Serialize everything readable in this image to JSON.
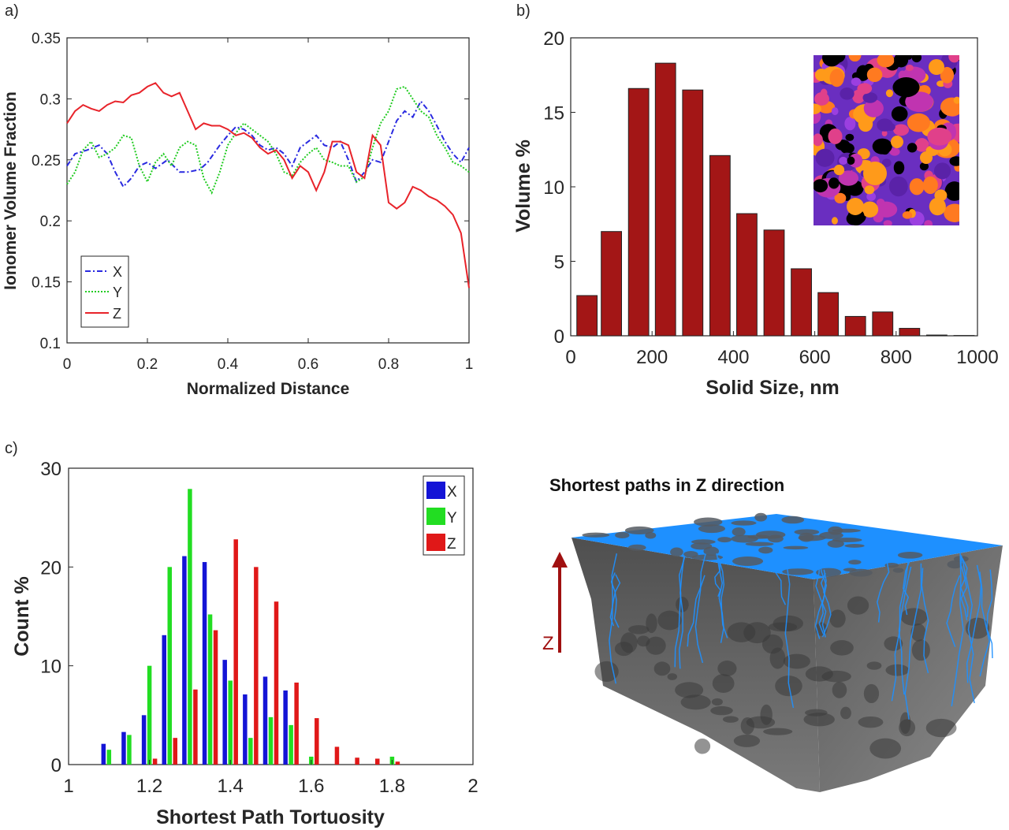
{
  "chart_data": [
    {
      "panel": "a)",
      "type": "line",
      "xlabel": "Normalized Distance",
      "ylabel": "Ionomer Volume Fraction",
      "xlim": [
        0,
        1
      ],
      "ylim": [
        0.1,
        0.35
      ],
      "xticks": [
        0,
        0.2,
        0.4,
        0.6,
        0.8,
        1
      ],
      "xtick_labels": [
        "0",
        "0.2",
        "0.4",
        "0.6",
        "0.8",
        "1"
      ],
      "yticks": [
        0.1,
        0.15,
        0.2,
        0.25,
        0.3,
        0.35
      ],
      "ytick_labels": [
        "0.1",
        "0.15",
        "0.2",
        "0.25",
        "0.3",
        "0.35"
      ],
      "legend_position": "bottom-left",
      "series": [
        {
          "name": "X",
          "color": "#2a2ae0",
          "style": "dashdot",
          "x": [
            0,
            0.02,
            0.05,
            0.08,
            0.1,
            0.12,
            0.14,
            0.16,
            0.18,
            0.2,
            0.22,
            0.25,
            0.28,
            0.3,
            0.33,
            0.35,
            0.38,
            0.4,
            0.42,
            0.44,
            0.46,
            0.48,
            0.5,
            0.52,
            0.54,
            0.56,
            0.58,
            0.6,
            0.62,
            0.64,
            0.66,
            0.68,
            0.7,
            0.72,
            0.74,
            0.76,
            0.78,
            0.8,
            0.82,
            0.84,
            0.86,
            0.88,
            0.9,
            0.92,
            0.94,
            0.96,
            0.98,
            1.0
          ],
          "y": [
            0.245,
            0.255,
            0.258,
            0.262,
            0.255,
            0.24,
            0.228,
            0.235,
            0.245,
            0.248,
            0.243,
            0.25,
            0.24,
            0.24,
            0.242,
            0.248,
            0.262,
            0.27,
            0.277,
            0.275,
            0.27,
            0.262,
            0.258,
            0.26,
            0.255,
            0.245,
            0.26,
            0.265,
            0.27,
            0.262,
            0.26,
            0.265,
            0.25,
            0.232,
            0.24,
            0.25,
            0.248,
            0.265,
            0.282,
            0.29,
            0.285,
            0.298,
            0.29,
            0.278,
            0.265,
            0.255,
            0.248,
            0.26
          ]
        },
        {
          "name": "Y",
          "color": "#22cc22",
          "style": "dotted",
          "x": [
            0,
            0.02,
            0.04,
            0.06,
            0.08,
            0.1,
            0.12,
            0.14,
            0.16,
            0.18,
            0.2,
            0.22,
            0.24,
            0.26,
            0.28,
            0.3,
            0.32,
            0.34,
            0.36,
            0.38,
            0.4,
            0.42,
            0.44,
            0.46,
            0.48,
            0.5,
            0.52,
            0.54,
            0.56,
            0.58,
            0.6,
            0.62,
            0.64,
            0.66,
            0.68,
            0.7,
            0.72,
            0.74,
            0.76,
            0.78,
            0.8,
            0.82,
            0.84,
            0.86,
            0.88,
            0.9,
            0.92,
            0.94,
            0.96,
            0.98,
            1.0
          ],
          "y": [
            0.23,
            0.24,
            0.258,
            0.265,
            0.252,
            0.255,
            0.26,
            0.27,
            0.268,
            0.245,
            0.232,
            0.248,
            0.255,
            0.245,
            0.26,
            0.265,
            0.262,
            0.235,
            0.223,
            0.24,
            0.262,
            0.272,
            0.28,
            0.275,
            0.27,
            0.265,
            0.255,
            0.24,
            0.237,
            0.248,
            0.255,
            0.26,
            0.25,
            0.248,
            0.245,
            0.245,
            0.232,
            0.236,
            0.26,
            0.28,
            0.29,
            0.308,
            0.31,
            0.3,
            0.29,
            0.285,
            0.27,
            0.26,
            0.248,
            0.245,
            0.24
          ]
        },
        {
          "name": "Z",
          "color": "#e8232a",
          "style": "solid",
          "x": [
            0,
            0.02,
            0.04,
            0.06,
            0.08,
            0.1,
            0.12,
            0.14,
            0.16,
            0.18,
            0.2,
            0.22,
            0.24,
            0.26,
            0.28,
            0.3,
            0.32,
            0.34,
            0.36,
            0.38,
            0.4,
            0.42,
            0.44,
            0.46,
            0.48,
            0.5,
            0.52,
            0.54,
            0.56,
            0.58,
            0.6,
            0.62,
            0.64,
            0.66,
            0.68,
            0.7,
            0.72,
            0.74,
            0.76,
            0.78,
            0.8,
            0.82,
            0.84,
            0.86,
            0.88,
            0.9,
            0.92,
            0.94,
            0.96,
            0.98,
            1.0
          ],
          "y": [
            0.28,
            0.29,
            0.295,
            0.292,
            0.29,
            0.295,
            0.298,
            0.297,
            0.303,
            0.305,
            0.31,
            0.313,
            0.305,
            0.302,
            0.305,
            0.29,
            0.275,
            0.28,
            0.278,
            0.278,
            0.275,
            0.27,
            0.272,
            0.268,
            0.26,
            0.255,
            0.258,
            0.25,
            0.235,
            0.245,
            0.24,
            0.225,
            0.24,
            0.265,
            0.265,
            0.262,
            0.24,
            0.235,
            0.27,
            0.262,
            0.215,
            0.21,
            0.215,
            0.228,
            0.225,
            0.22,
            0.217,
            0.212,
            0.205,
            0.19,
            0.145
          ]
        }
      ]
    },
    {
      "panel": "b)",
      "type": "bar",
      "xlabel": "Solid Size, nm",
      "ylabel": "Volume %",
      "xlim": [
        0,
        1000
      ],
      "ylim": [
        0,
        20
      ],
      "xticks": [
        0,
        200,
        400,
        600,
        800,
        1000
      ],
      "xtick_labels": [
        "0",
        "200",
        "400",
        "600",
        "800",
        "1000"
      ],
      "yticks": [
        0,
        5,
        10,
        15,
        20
      ],
      "ytick_labels": [
        "0",
        "5",
        "10",
        "15",
        "20"
      ],
      "bar_color": "#a31616",
      "bar_width": 50,
      "x": [
        40,
        100,
        167,
        233,
        300,
        367,
        433,
        500,
        567,
        633,
        700,
        767,
        833,
        900,
        967
      ],
      "values": [
        2.7,
        7.0,
        16.6,
        18.3,
        16.5,
        12.1,
        8.2,
        7.1,
        4.5,
        2.9,
        1.3,
        1.6,
        0.5,
        0.05,
        0.02
      ],
      "inset": "false-color microstructure image"
    },
    {
      "panel": "c)",
      "type": "bar",
      "xlabel": "Shortest Path Tortuosity",
      "ylabel": "Count %",
      "xlim": [
        1,
        2
      ],
      "ylim": [
        0,
        30
      ],
      "xticks": [
        1,
        1.2,
        1.4,
        1.6,
        1.8,
        2
      ],
      "xtick_labels": [
        "1",
        "1.2",
        "1.4",
        "1.6",
        "1.8",
        "2"
      ],
      "yticks": [
        0,
        10,
        20,
        30
      ],
      "ytick_labels": [
        "0",
        "10",
        "20",
        "30"
      ],
      "legend_position": "top-right",
      "categories": [
        1.1,
        1.15,
        1.2,
        1.25,
        1.3,
        1.35,
        1.4,
        1.45,
        1.5,
        1.55,
        1.6,
        1.65,
        1.7,
        1.75,
        1.8
      ],
      "series": [
        {
          "name": "X",
          "color": "#1414d6",
          "values": [
            2.1,
            3.3,
            5.0,
            13.1,
            21.1,
            20.5,
            10.6,
            7.1,
            8.9,
            7.5,
            0.0,
            0.0,
            0.0,
            0.0,
            0.0
          ]
        },
        {
          "name": "Y",
          "color": "#22dd22",
          "values": [
            1.5,
            3.0,
            10.0,
            20.0,
            27.9,
            15.2,
            8.5,
            2.7,
            4.8,
            4.0,
            0.8,
            0.0,
            0.0,
            0.0,
            0.8
          ]
        },
        {
          "name": "Z",
          "color": "#e01818",
          "values": [
            0.0,
            0.0,
            0.6,
            2.7,
            7.6,
            13.6,
            22.8,
            20.0,
            16.5,
            8.3,
            4.7,
            1.8,
            0.7,
            0.6,
            0.3
          ]
        }
      ]
    }
  ],
  "panel_d": {
    "title": "Shortest paths in Z direction",
    "arrow_label": "Z",
    "top_color": "#1e90ff",
    "solid_color": "#5f5f5f"
  }
}
